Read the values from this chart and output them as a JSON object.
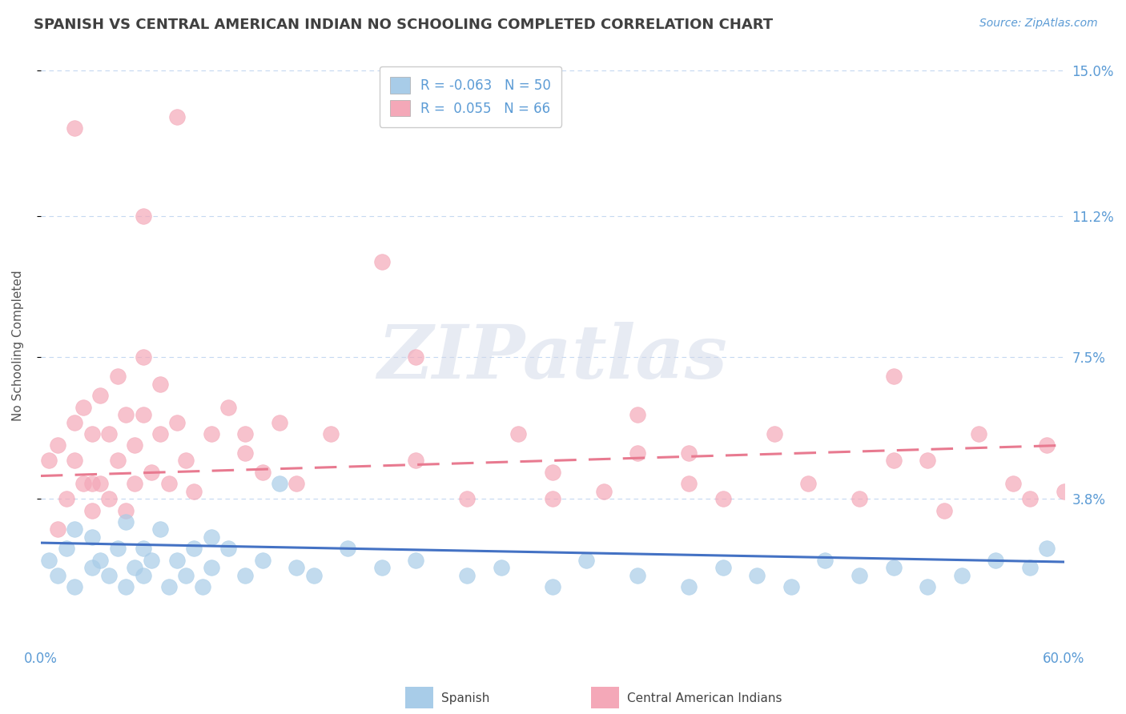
{
  "title": "SPANISH VS CENTRAL AMERICAN INDIAN NO SCHOOLING COMPLETED CORRELATION CHART",
  "source": "Source: ZipAtlas.com",
  "ylabel": "No Schooling Completed",
  "xlim": [
    0.0,
    0.6
  ],
  "ylim": [
    0.0,
    0.156
  ],
  "ytick_vals": [
    0.038,
    0.075,
    0.112,
    0.15
  ],
  "ytick_labels": [
    "3.8%",
    "7.5%",
    "11.2%",
    "15.0%"
  ],
  "xtick_vals": [
    0.0,
    0.6
  ],
  "xtick_labels": [
    "0.0%",
    "60.0%"
  ],
  "spanish_R": -0.063,
  "spanish_N": 50,
  "cai_R": 0.055,
  "cai_N": 66,
  "spanish_color": "#a8cce8",
  "cai_color": "#f4a8b8",
  "spanish_line_color": "#4472c4",
  "cai_line_color": "#e87a90",
  "title_color": "#404040",
  "tick_color": "#5b9bd5",
  "grid_color": "#c5d9f1",
  "background_color": "#ffffff",
  "watermark": "ZIPatlas",
  "legend_label1": "Spanish",
  "legend_label2": "Central American Indians",
  "spanish_line_x0": 0.0,
  "spanish_line_y0": 0.0265,
  "spanish_line_x1": 0.6,
  "spanish_line_y1": 0.0215,
  "cai_line_x0": 0.0,
  "cai_line_y0": 0.044,
  "cai_line_x1": 0.6,
  "cai_line_y1": 0.052,
  "spanish_x": [
    0.005,
    0.01,
    0.015,
    0.02,
    0.02,
    0.03,
    0.03,
    0.035,
    0.04,
    0.045,
    0.05,
    0.05,
    0.055,
    0.06,
    0.06,
    0.065,
    0.07,
    0.075,
    0.08,
    0.085,
    0.09,
    0.095,
    0.1,
    0.1,
    0.11,
    0.12,
    0.13,
    0.14,
    0.15,
    0.16,
    0.18,
    0.2,
    0.22,
    0.25,
    0.27,
    0.3,
    0.32,
    0.35,
    0.38,
    0.4,
    0.42,
    0.44,
    0.46,
    0.48,
    0.5,
    0.52,
    0.54,
    0.56,
    0.58,
    0.59
  ],
  "spanish_y": [
    0.022,
    0.018,
    0.025,
    0.03,
    0.015,
    0.02,
    0.028,
    0.022,
    0.018,
    0.025,
    0.032,
    0.015,
    0.02,
    0.025,
    0.018,
    0.022,
    0.03,
    0.015,
    0.022,
    0.018,
    0.025,
    0.015,
    0.02,
    0.028,
    0.025,
    0.018,
    0.022,
    0.042,
    0.02,
    0.018,
    0.025,
    0.02,
    0.022,
    0.018,
    0.02,
    0.015,
    0.022,
    0.018,
    0.015,
    0.02,
    0.018,
    0.015,
    0.022,
    0.018,
    0.02,
    0.015,
    0.018,
    0.022,
    0.02,
    0.025
  ],
  "cai_x": [
    0.005,
    0.01,
    0.01,
    0.015,
    0.02,
    0.02,
    0.025,
    0.025,
    0.03,
    0.03,
    0.035,
    0.035,
    0.04,
    0.04,
    0.045,
    0.045,
    0.05,
    0.05,
    0.055,
    0.055,
    0.06,
    0.06,
    0.065,
    0.07,
    0.07,
    0.075,
    0.08,
    0.085,
    0.09,
    0.1,
    0.11,
    0.12,
    0.13,
    0.14,
    0.15,
    0.17,
    0.2,
    0.22,
    0.25,
    0.28,
    0.3,
    0.33,
    0.35,
    0.38,
    0.4,
    0.43,
    0.45,
    0.48,
    0.5,
    0.53,
    0.55,
    0.57,
    0.58,
    0.59,
    0.6,
    0.35,
    0.22,
    0.5,
    0.38,
    0.3,
    0.52,
    0.12,
    0.08,
    0.06,
    0.03,
    0.02
  ],
  "cai_y": [
    0.048,
    0.03,
    0.052,
    0.038,
    0.048,
    0.058,
    0.042,
    0.062,
    0.035,
    0.055,
    0.042,
    0.065,
    0.038,
    0.055,
    0.048,
    0.07,
    0.035,
    0.06,
    0.042,
    0.052,
    0.06,
    0.075,
    0.045,
    0.055,
    0.068,
    0.042,
    0.058,
    0.048,
    0.04,
    0.055,
    0.062,
    0.05,
    0.045,
    0.058,
    0.042,
    0.055,
    0.1,
    0.048,
    0.038,
    0.055,
    0.045,
    0.04,
    0.05,
    0.042,
    0.038,
    0.055,
    0.042,
    0.038,
    0.048,
    0.035,
    0.055,
    0.042,
    0.038,
    0.052,
    0.04,
    0.06,
    0.075,
    0.07,
    0.05,
    0.038,
    0.048,
    0.055,
    0.138,
    0.112,
    0.042,
    0.135
  ]
}
